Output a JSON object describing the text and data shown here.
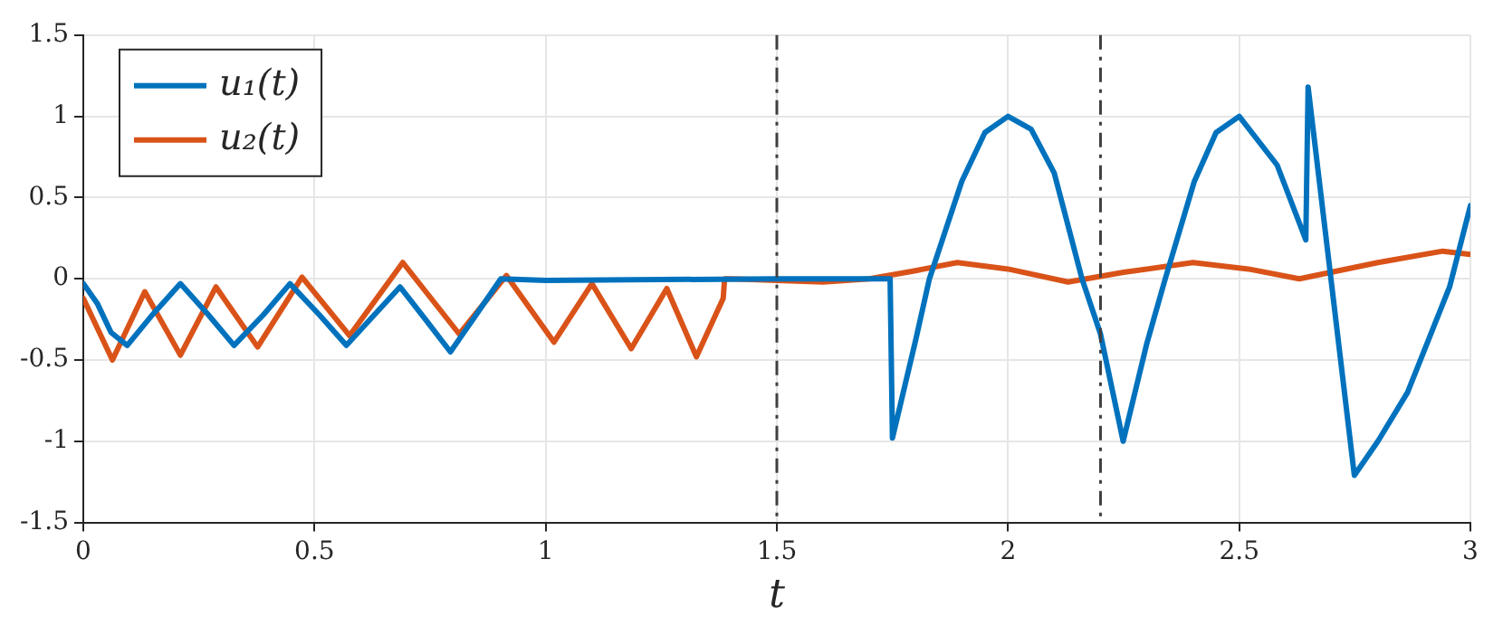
{
  "chart_data": {
    "type": "line",
    "xlabel": "t",
    "xlim": [
      0,
      3
    ],
    "xticks": [
      0,
      0.5,
      1,
      1.5,
      2,
      2.5,
      3
    ],
    "ylim": [
      -1.5,
      1.5
    ],
    "yticks": [
      -1.5,
      -1,
      -0.5,
      0,
      0.5,
      1,
      1.5
    ],
    "grid": true,
    "legend": "top left",
    "line_style": "solid",
    "marker": "none",
    "series": [
      {
        "name": "u₁(t)",
        "color": "#0072bd",
        "x": [
          0,
          0.03,
          0.06,
          0.095,
          0.15,
          0.21,
          0.27,
          0.326,
          0.39,
          0.447,
          0.51,
          0.569,
          0.63,
          0.685,
          0.74,
          0.794,
          0.85,
          0.903,
          1.0,
          1.5,
          1.745,
          1.75,
          1.8,
          1.83,
          1.9,
          1.95,
          2.0,
          2.05,
          2.1,
          2.16,
          2.2,
          2.249,
          2.3,
          2.34,
          2.403,
          2.45,
          2.5,
          2.582,
          2.644,
          2.649,
          2.749,
          2.8,
          2.864,
          2.955,
          3.0
        ],
        "values": [
          -0.03,
          -0.15,
          -0.33,
          -0.41,
          -0.22,
          -0.03,
          -0.22,
          -0.41,
          -0.22,
          -0.03,
          -0.22,
          -0.41,
          -0.22,
          -0.05,
          -0.25,
          -0.45,
          -0.22,
          0,
          -0.01,
          0,
          0,
          -0.98,
          -0.38,
          0,
          0.6,
          0.9,
          1.0,
          0.92,
          0.65,
          0,
          -0.34,
          -1.0,
          -0.4,
          0,
          0.6,
          0.9,
          1.0,
          0.7,
          0.24,
          1.18,
          -1.21,
          -1.0,
          -0.7,
          -0.05,
          0.45
        ]
      },
      {
        "name": "u₂(t)",
        "color": "#d95319",
        "x": [
          0,
          0.063,
          0.133,
          0.21,
          0.287,
          0.377,
          0.473,
          0.576,
          0.691,
          0.813,
          0.915,
          1.018,
          1.1,
          1.185,
          1.262,
          1.326,
          1.384,
          1.387,
          1.4,
          1.6,
          1.7,
          1.8,
          1.89,
          2.0,
          2.13,
          2.25,
          2.4,
          2.52,
          2.63,
          2.8,
          2.94,
          3.0
        ],
        "values": [
          -0.12,
          -0.5,
          -0.08,
          -0.47,
          -0.05,
          -0.42,
          0.01,
          -0.35,
          0.1,
          -0.34,
          0.02,
          -0.39,
          -0.03,
          -0.43,
          -0.06,
          -0.48,
          -0.12,
          0,
          0,
          -0.02,
          0,
          0.05,
          0.1,
          0.06,
          -0.02,
          0.04,
          0.1,
          0.06,
          0,
          0.1,
          0.17,
          0.15
        ]
      }
    ],
    "ref_lines": [
      {
        "axis": "x",
        "value": 1.5,
        "color": "#404040",
        "line_style": "dashdot"
      },
      {
        "axis": "x",
        "value": 2.2,
        "color": "#404040",
        "line_style": "dashdot"
      }
    ]
  }
}
